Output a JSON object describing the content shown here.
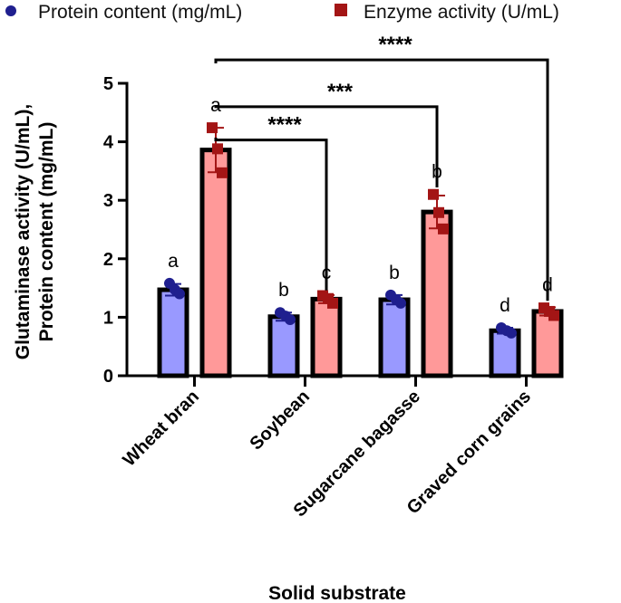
{
  "chart_data": {
    "type": "bar",
    "title": "",
    "xlabel": "Solid substrate",
    "ylabel_lines": [
      "Glutaminase activity (U/mL),",
      "Protein content (mg/mL)"
    ],
    "ylim": [
      0,
      5
    ],
    "yticks": [
      "0",
      "1",
      "2",
      "3",
      "4",
      "5"
    ],
    "grid": false,
    "legend_position": "top",
    "categories": [
      "Wheat bran",
      "Soybean",
      "Sugarcane bagasse",
      "Graved corn grains"
    ],
    "series": [
      {
        "name": "Protein content (mg/mL)",
        "color": "#9999ff",
        "marker_color": "#1f1f8f",
        "marker": "circle",
        "values": [
          1.47,
          1.01,
          1.3,
          0.77
        ],
        "errors": [
          0.1,
          0.07,
          0.08,
          0.05
        ],
        "points": [
          [
            1.58,
            1.47,
            1.4
          ],
          [
            1.08,
            1.02,
            0.96
          ],
          [
            1.38,
            1.3,
            1.24
          ],
          [
            0.82,
            0.77,
            0.73
          ]
        ],
        "letters": [
          "a",
          "b",
          "b",
          "d"
        ]
      },
      {
        "name": "Enzyme activity (U/mL)",
        "color": "#ff9999",
        "marker_color": "#a31515",
        "marker": "square",
        "values": [
          3.86,
          1.31,
          2.8,
          1.1
        ],
        "errors": [
          0.38,
          0.07,
          0.28,
          0.07
        ],
        "points": [
          [
            4.24,
            3.88,
            3.47
          ],
          [
            1.37,
            1.32,
            1.24
          ],
          [
            3.1,
            2.79,
            2.51
          ],
          [
            1.16,
            1.1,
            1.03
          ]
        ],
        "letters": [
          "a",
          "c",
          "b",
          "d"
        ]
      }
    ],
    "significance": [
      {
        "from_category": 0,
        "to_category": 3,
        "label": "****",
        "level": 5.4
      },
      {
        "from_category": 0,
        "to_category": 2,
        "label": "***",
        "level": 4.6
      },
      {
        "from_category": 0,
        "to_category": 1,
        "label": "****",
        "level": 4.03
      }
    ]
  }
}
